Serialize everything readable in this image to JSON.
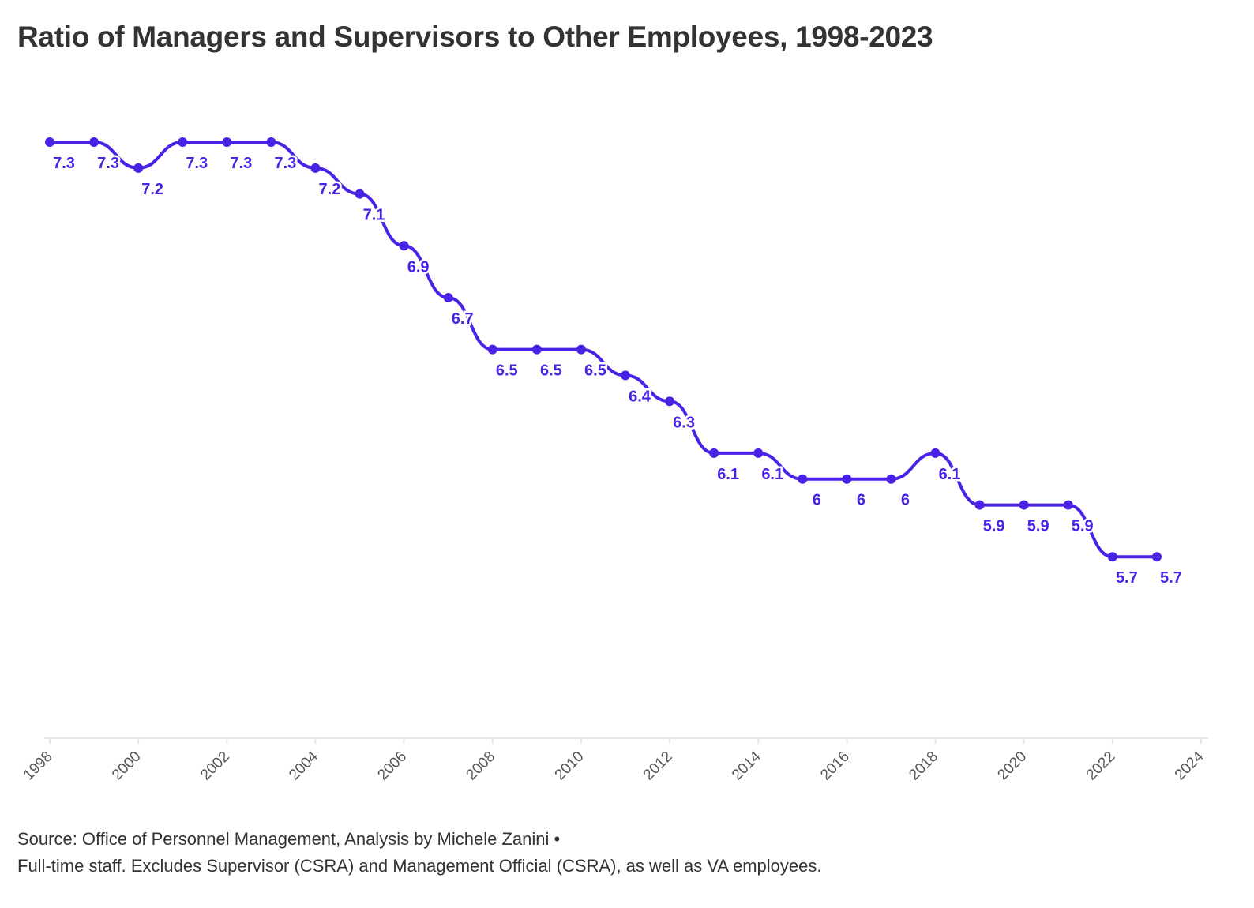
{
  "chart_data": {
    "type": "line",
    "title": "Ratio of Managers and Supervisors to Other Employees, 1998-2023",
    "xlabel": "",
    "ylabel": "",
    "x": [
      1998,
      1999,
      2000,
      2001,
      2002,
      2003,
      2004,
      2005,
      2006,
      2007,
      2008,
      2009,
      2010,
      2011,
      2012,
      2013,
      2014,
      2015,
      2016,
      2017,
      2018,
      2019,
      2020,
      2021,
      2022,
      2023
    ],
    "series": [
      {
        "values": [
          7.3,
          7.3,
          7.2,
          7.3,
          7.3,
          7.3,
          7.2,
          7.1,
          6.9,
          6.7,
          6.5,
          6.5,
          6.5,
          6.4,
          6.3,
          6.1,
          6.1,
          6,
          6,
          6,
          6.1,
          5.9,
          5.9,
          5.9,
          5.7,
          5.7
        ],
        "labels": [
          "7.3",
          "7.3",
          "7.2",
          "7.3",
          "7.3",
          "7.3",
          "7.2",
          "7.1",
          "6.9",
          "6.7",
          "6.5",
          "6.5",
          "6.5",
          "6.4",
          "6.3",
          "6.1",
          "6.1",
          "6",
          "6",
          "6",
          "6.1",
          "5.9",
          "5.9",
          "5.9",
          "5.7",
          "5.7"
        ]
      }
    ],
    "x_ticks": [
      "1998",
      "2000",
      "2002",
      "2004",
      "2006",
      "2008",
      "2010",
      "2012",
      "2014",
      "2016",
      "2018",
      "2020",
      "2022",
      "2024"
    ],
    "xlim": [
      1998,
      2024
    ],
    "ylim": [
      5,
      7.3
    ],
    "grid": false,
    "line_color": "#4a22e6",
    "axis_color": "#e6e6e6",
    "tick_label_color": "#555555"
  },
  "footer": {
    "source": "Source: Office of Personnel Management, Analysis by Michele Zanini •",
    "note": "Full-time staff. Excludes Supervisor (CSRA) and Management Official (CSRA), as well as VA employees."
  }
}
